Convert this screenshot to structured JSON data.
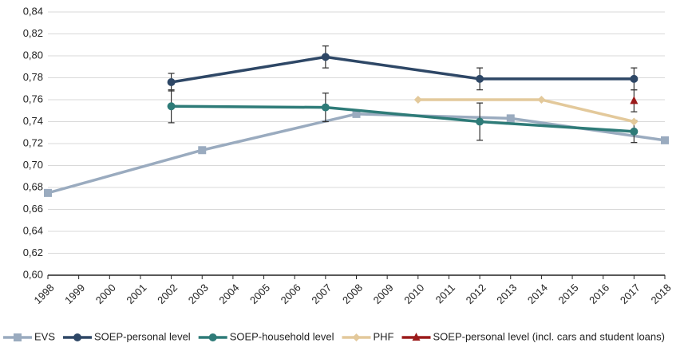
{
  "chart_data": {
    "type": "line",
    "xlim": [
      1998,
      2018
    ],
    "xticks": [
      1998,
      1999,
      2000,
      2001,
      2002,
      2003,
      2004,
      2005,
      2006,
      2007,
      2008,
      2009,
      2010,
      2011,
      2012,
      2013,
      2014,
      2015,
      2016,
      2017,
      2018
    ],
    "ylim": [
      0.6,
      0.84
    ],
    "yticks": [
      {
        "value": 0.6,
        "label": "0,60"
      },
      {
        "value": 0.62,
        "label": "0,62"
      },
      {
        "value": 0.64,
        "label": "0,64"
      },
      {
        "value": 0.66,
        "label": "0,66"
      },
      {
        "value": 0.68,
        "label": "0,68"
      },
      {
        "value": 0.7,
        "label": "0,70"
      },
      {
        "value": 0.72,
        "label": "0,72"
      },
      {
        "value": 0.74,
        "label": "0,74"
      },
      {
        "value": 0.76,
        "label": "0,76"
      },
      {
        "value": 0.78,
        "label": "0,78"
      },
      {
        "value": 0.8,
        "label": "0,80"
      },
      {
        "value": 0.82,
        "label": "0,82"
      },
      {
        "value": 0.84,
        "label": "0,84"
      }
    ],
    "grid": true,
    "legend": "bottom",
    "series": [
      {
        "name": "EVS",
        "color": "#9aabbf",
        "marker": "square",
        "x": [
          1998,
          2003,
          2008,
          2013,
          2018
        ],
        "values": [
          0.675,
          0.714,
          0.747,
          0.743,
          0.723
        ]
      },
      {
        "name": "SOEP-personal level",
        "color": "#2e4766",
        "marker": "circle",
        "x": [
          2002,
          2007,
          2012,
          2017
        ],
        "values": [
          0.776,
          0.799,
          0.779,
          0.779
        ],
        "errors": [
          0.008,
          0.01,
          0.01,
          0.01
        ]
      },
      {
        "name": "SOEP-household level",
        "color": "#2e7b78",
        "marker": "circle",
        "x": [
          2002,
          2007,
          2012,
          2017
        ],
        "values": [
          0.754,
          0.753,
          0.74,
          0.731
        ],
        "errors": [
          0.015,
          0.013,
          0.017,
          0.01
        ]
      },
      {
        "name": "PHF",
        "color": "#e3c99b",
        "marker": "diamond",
        "x": [
          2010,
          2014,
          2017
        ],
        "values": [
          0.76,
          0.76,
          0.74
        ]
      },
      {
        "name": "SOEP-personal level (incl. cars and student loans)",
        "color": "#9b1b1b",
        "marker": "triangle",
        "x": [
          2017
        ],
        "values": [
          0.759
        ],
        "errors": [
          0.01
        ]
      }
    ]
  }
}
